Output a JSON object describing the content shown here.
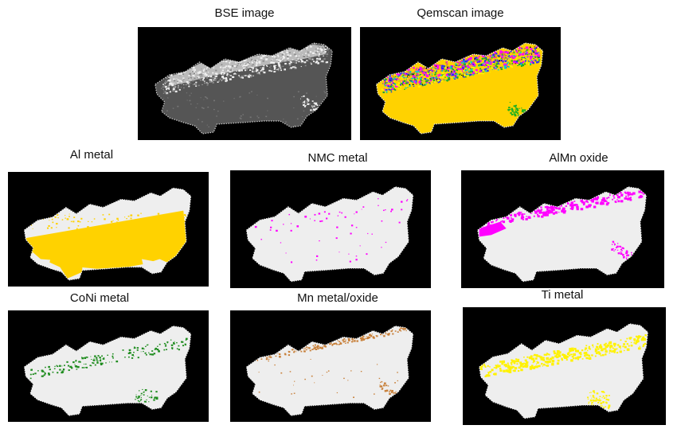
{
  "panels": [
    {
      "id": "bse",
      "label": "BSE image",
      "kind": "bse"
    },
    {
      "id": "qemscan",
      "label": "Qemscan image",
      "kind": "qemscan"
    },
    {
      "id": "al",
      "label": "Al metal",
      "kind": "phase",
      "phase": "al",
      "color": "#FFD200"
    },
    {
      "id": "nmc",
      "label": "NMC metal",
      "kind": "phase",
      "phase": "nmc",
      "color": "#FF00FF"
    },
    {
      "id": "almn",
      "label": "AlMn oxide",
      "kind": "phase",
      "phase": "almn",
      "color": "#FF00FF"
    },
    {
      "id": "coni",
      "label": "CoNi metal",
      "kind": "phase",
      "phase": "coni",
      "color": "#1E8C1E"
    },
    {
      "id": "mn",
      "label": "Mn metal/oxide",
      "kind": "phase",
      "phase": "mn",
      "color": "#C8803A"
    },
    {
      "id": "ti",
      "label": "Ti metal",
      "kind": "phase",
      "phase": "ti",
      "color": "#FFF200"
    }
  ],
  "colors": {
    "background": "#000000",
    "particle": "#EEEEEE",
    "bse_matrix": "#555555",
    "bse_bright": "#F0F0F0"
  }
}
